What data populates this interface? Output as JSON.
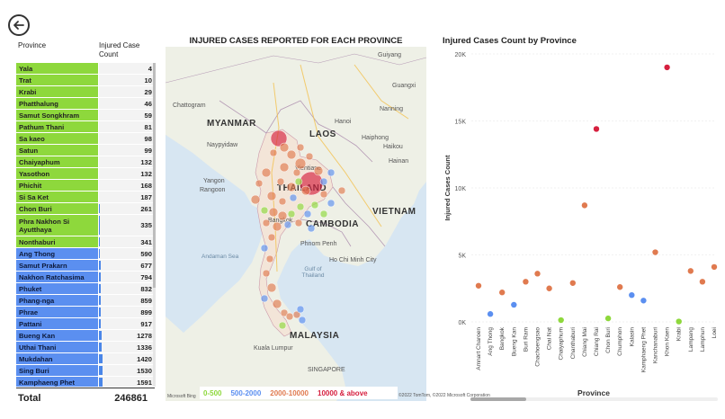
{
  "nav": {
    "back_icon": "arrow-left-circle-icon"
  },
  "table": {
    "col_province": "Province",
    "col_count": "Injured Case Count",
    "rows": [
      {
        "name": "Yala",
        "value": 4,
        "group": "green"
      },
      {
        "name": "Trat",
        "value": 10,
        "group": "green"
      },
      {
        "name": "Krabi",
        "value": 29,
        "group": "green"
      },
      {
        "name": "Phatthalung",
        "value": 46,
        "group": "green"
      },
      {
        "name": "Samut Songkhram",
        "value": 59,
        "group": "green"
      },
      {
        "name": "Pathum Thani",
        "value": 81,
        "group": "green"
      },
      {
        "name": "Sa kaeo",
        "value": 98,
        "group": "green"
      },
      {
        "name": "Satun",
        "value": 99,
        "group": "green"
      },
      {
        "name": "Chaiyaphum",
        "value": 132,
        "group": "green"
      },
      {
        "name": "Yasothon",
        "value": 132,
        "group": "green"
      },
      {
        "name": "Phichit",
        "value": 168,
        "group": "green"
      },
      {
        "name": "Si Sa Ket",
        "value": 187,
        "group": "green"
      },
      {
        "name": "Chon Buri",
        "value": 261,
        "group": "green"
      },
      {
        "name": "Phra Nakhon Si Ayutthaya",
        "value": 335,
        "group": "green"
      },
      {
        "name": "Nonthaburi",
        "value": 341,
        "group": "green"
      },
      {
        "name": "Ang Thong",
        "value": 590,
        "group": "blue"
      },
      {
        "name": "Samut Prakarn",
        "value": 677,
        "group": "blue"
      },
      {
        "name": "Nakhon Ratchasima",
        "value": 794,
        "group": "blue"
      },
      {
        "name": "Phuket",
        "value": 832,
        "group": "blue"
      },
      {
        "name": "Phang-nga",
        "value": 859,
        "group": "blue"
      },
      {
        "name": "Phrae",
        "value": 899,
        "group": "blue"
      },
      {
        "name": "Pattani",
        "value": 917,
        "group": "blue"
      },
      {
        "name": "Bueng Kan",
        "value": 1278,
        "group": "blue"
      },
      {
        "name": "Uthai Thani",
        "value": 1336,
        "group": "blue"
      },
      {
        "name": "Mukdahan",
        "value": 1420,
        "group": "blue"
      },
      {
        "name": "Sing Buri",
        "value": 1530,
        "group": "blue"
      },
      {
        "name": "Kamphaeng Phet",
        "value": 1591,
        "group": "blue"
      }
    ],
    "total_label": "Total",
    "total_value": "246861"
  },
  "map": {
    "title": "INJURED CASES REPORTED FOR EACH PROVINCE",
    "labels": {
      "myanmar": "MYANMAR",
      "laos": "LAOS",
      "thailand": "THAILAND",
      "cambodia": "CAMBODIA",
      "vietnam": "VIETNAM",
      "malaysia": "MALAYSIA",
      "guiyang": "Guiyang",
      "guangxi": "Guangxi",
      "nanning": "Nanning",
      "hanoi": "Hanoi",
      "haiphong": "Haiphong",
      "haikou": "Haikou",
      "hainan": "Hainan",
      "chattogram": "Chattogram",
      "naypyidaw": "Naypyidaw",
      "yangon": "Yangon",
      "rangoon": "Rangoon",
      "vientiane": "Vientiane",
      "bangkok": "Bangkok",
      "phnom_penh": "Phnom Penh",
      "hcmc": "Ho Chi Minh City",
      "andaman": "Andaman Sea",
      "gulf": "Gulf of Thailand",
      "kuala_lumpur": "Kuala Lumpur",
      "singapore": "SINGAPORE"
    },
    "logo": "Microsoft Bing",
    "copyright": "©2022 TomTom, ©2022 Microsoft Corporation",
    "legend": [
      {
        "label": "0-500",
        "color": "#8ed83c"
      },
      {
        "label": "500-2000",
        "color": "#5b8ff0"
      },
      {
        "label": "2000-10000",
        "color": "#e07a4f"
      },
      {
        "label": "10000 & above",
        "color": "#d6203f"
      }
    ]
  },
  "chart_data": {
    "type": "scatter",
    "title": "Injured Cases Count by Province",
    "xlabel": "Province",
    "ylabel": "Injured Cases Count",
    "ylim": [
      0,
      20000
    ],
    "yticks": [
      "0K",
      "5K",
      "10K",
      "15K",
      "20K"
    ],
    "categories": [
      "Amnart Charoen",
      "Ang Thong",
      "Bangkok",
      "Bueng Kan",
      "Buri Ram",
      "Chachoengsao",
      "Chai Nat",
      "Chaiyaphum",
      "Chanthaburi",
      "Chiang Mai",
      "Chiang Rai",
      "Chon Buri",
      "Chumphon",
      "Kalasin",
      "Kamphaeng Phet",
      "Kanchanaburi",
      "Khon Kaen",
      "Krabi",
      "Lampang",
      "Lamphun",
      "Loei"
    ],
    "values": [
      2700,
      590,
      2200,
      1278,
      3000,
      3600,
      2500,
      132,
      2900,
      8700,
      14400,
      261,
      2600,
      2000,
      1591,
      5200,
      19000,
      29,
      3800,
      3000,
      4100
    ],
    "colors": [
      "#e07a4f",
      "#5b8ff0",
      "#e07a4f",
      "#5b8ff0",
      "#e07a4f",
      "#e07a4f",
      "#e07a4f",
      "#8ed83c",
      "#e07a4f",
      "#e07a4f",
      "#d6203f",
      "#8ed83c",
      "#e07a4f",
      "#5b8ff0",
      "#5b8ff0",
      "#e07a4f",
      "#d6203f",
      "#8ed83c",
      "#e07a4f",
      "#e07a4f",
      "#e07a4f"
    ]
  }
}
